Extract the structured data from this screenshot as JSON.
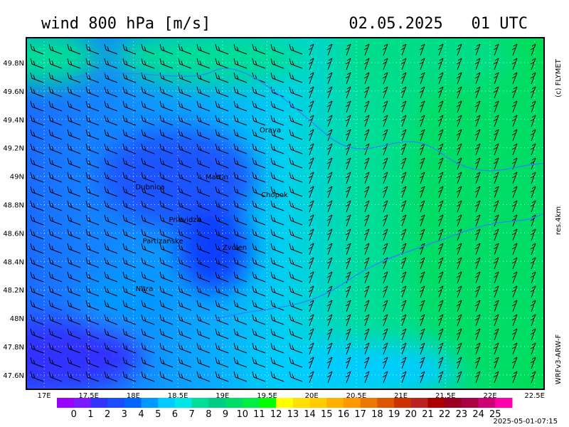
{
  "header": {
    "title": "wind 800 hPa [m/s]",
    "datetime": "02.05.2025   01 UTC"
  },
  "side_labels": {
    "copyright": "(c) FLYMET",
    "resolution": "res.4km",
    "model": "WRFv3-ARW-F"
  },
  "map": {
    "lon_ticks": [
      "17E",
      "17.5E",
      "18E",
      "18.5E",
      "19E",
      "19.5E",
      "20E",
      "20.5E",
      "21E",
      "21.5E",
      "22E",
      "22.5E"
    ],
    "lat_ticks": [
      "49.8N",
      "49.6N",
      "49.4N",
      "49.2N",
      "49N",
      "48.8N",
      "48.6N",
      "48.4N",
      "48.2N",
      "48N",
      "47.8N",
      "47.6N"
    ],
    "places": [
      {
        "name": "Orava"
      },
      {
        "name": "Martin"
      },
      {
        "name": "Dubnica"
      },
      {
        "name": "Chopok"
      },
      {
        "name": "Prievidza"
      },
      {
        "name": "Partizanske"
      },
      {
        "name": "Zvolen"
      },
      {
        "name": "Nitra"
      }
    ]
  },
  "colorbar": {
    "colors": [
      "#9900ff",
      "#7a1aff",
      "#3333ff",
      "#1a4dff",
      "#0066ff",
      "#0099ff",
      "#00ccff",
      "#00e5e5",
      "#00dd99",
      "#00cc88",
      "#00dd66",
      "#00ee44",
      "#00ff00",
      "#ffff00",
      "#ffe000",
      "#ffcc00",
      "#ffb000",
      "#ff9900",
      "#ee7700",
      "#dd5500",
      "#cc3300",
      "#bb2222",
      "#aa0000",
      "#990022",
      "#aa0044",
      "#cc0077",
      "#ff00aa"
    ],
    "labels": [
      "0",
      "1",
      "2",
      "3",
      "4",
      "5",
      "6",
      "7",
      "8",
      "9",
      "10",
      "11",
      "12",
      "13",
      "14",
      "15",
      "16",
      "17",
      "18",
      "19",
      "20",
      "21",
      "22",
      "23",
      "24",
      "25"
    ]
  },
  "footer": {
    "timestamp": "2025-05-01-07:15"
  }
}
